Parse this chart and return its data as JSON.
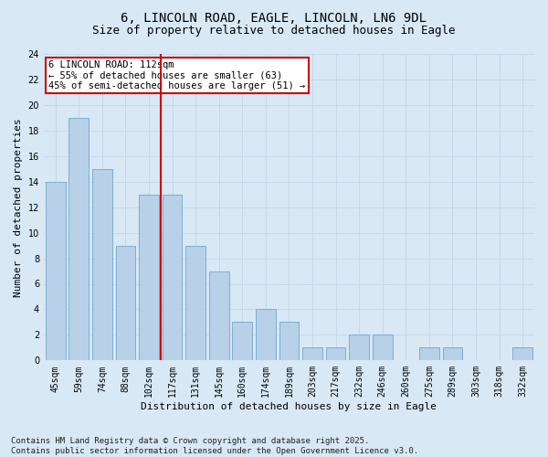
{
  "title_line1": "6, LINCOLN ROAD, EAGLE, LINCOLN, LN6 9DL",
  "title_line2": "Size of property relative to detached houses in Eagle",
  "xlabel": "Distribution of detached houses by size in Eagle",
  "ylabel": "Number of detached properties",
  "categories": [
    "45sqm",
    "59sqm",
    "74sqm",
    "88sqm",
    "102sqm",
    "117sqm",
    "131sqm",
    "145sqm",
    "160sqm",
    "174sqm",
    "189sqm",
    "203sqm",
    "217sqm",
    "232sqm",
    "246sqm",
    "260sqm",
    "275sqm",
    "289sqm",
    "303sqm",
    "318sqm",
    "332sqm"
  ],
  "values": [
    14,
    19,
    15,
    9,
    13,
    13,
    9,
    7,
    3,
    4,
    3,
    1,
    1,
    2,
    2,
    0,
    1,
    1,
    0,
    0,
    1
  ],
  "bar_color": "#b8d0e8",
  "bar_edge_color": "#7aafd4",
  "vline_x": 4.5,
  "annotation_text": "6 LINCOLN ROAD: 112sqm\n← 55% of detached houses are smaller (63)\n45% of semi-detached houses are larger (51) →",
  "annotation_box_color": "#ffffff",
  "annotation_box_edge": "#cc0000",
  "vline_color": "#cc0000",
  "grid_color": "#c5d8ea",
  "background_color": "#d8e8f4",
  "ylim": [
    0,
    24
  ],
  "yticks": [
    0,
    2,
    4,
    6,
    8,
    10,
    12,
    14,
    16,
    18,
    20,
    22,
    24
  ],
  "footer_text": "Contains HM Land Registry data © Crown copyright and database right 2025.\nContains public sector information licensed under the Open Government Licence v3.0."
}
